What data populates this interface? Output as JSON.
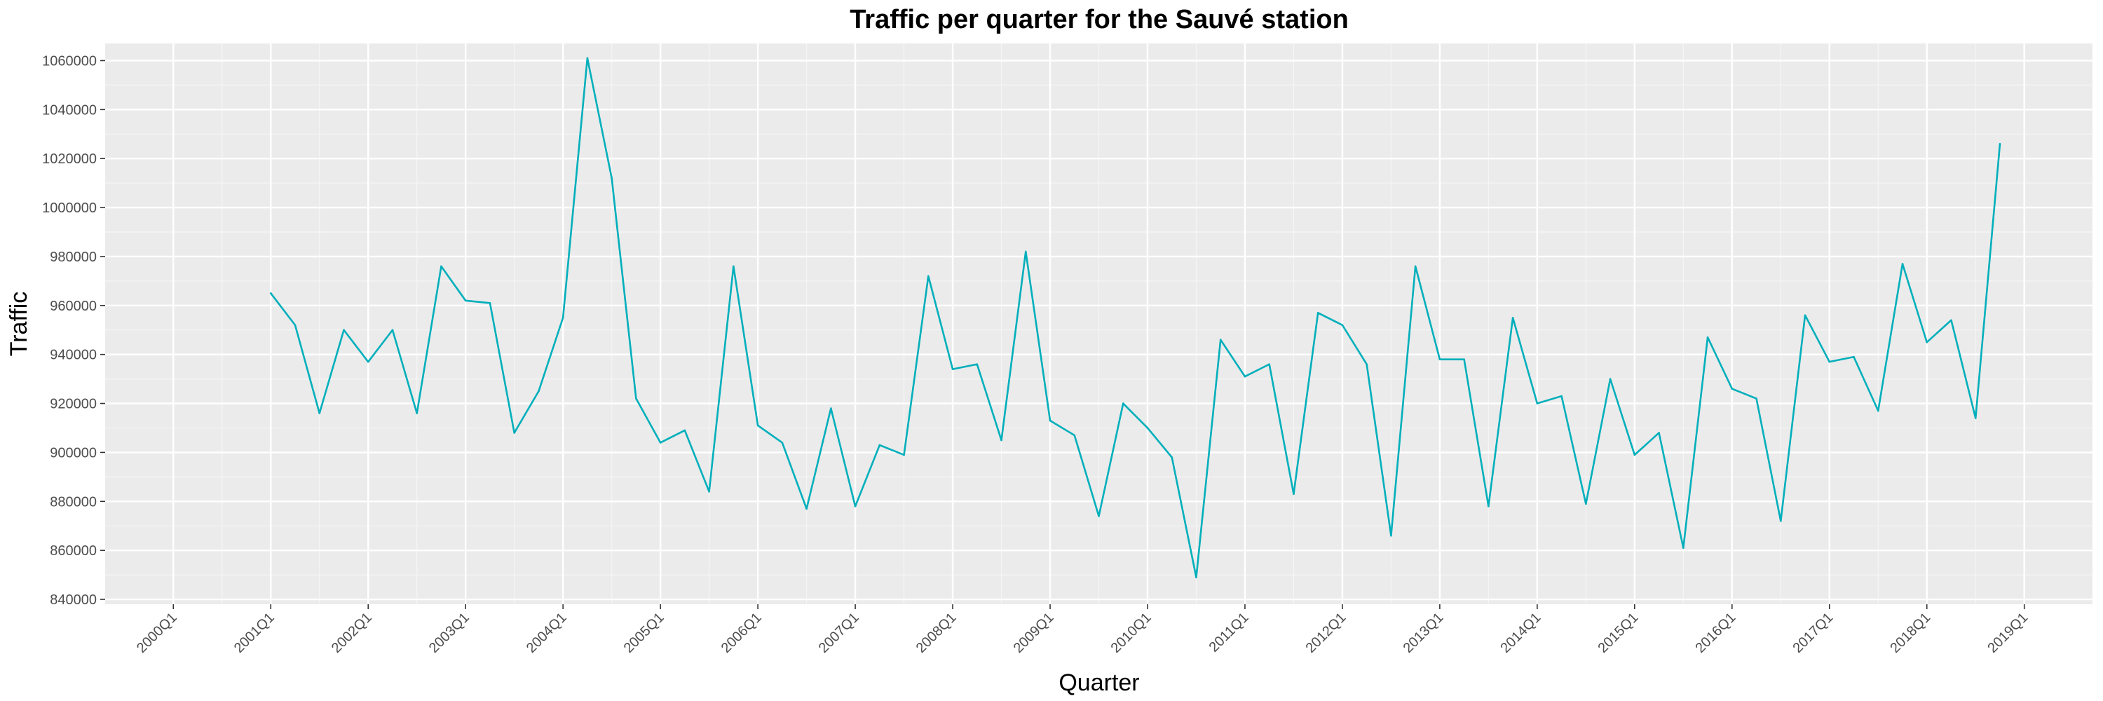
{
  "chart_data": {
    "type": "line",
    "title": "Traffic per quarter for the Sauvé station",
    "xlabel": "Quarter",
    "ylabel": "Traffic",
    "x_tick_labels": [
      "2000Q1",
      "2001Q1",
      "2002Q1",
      "2003Q1",
      "2004Q1",
      "2005Q1",
      "2006Q1",
      "2007Q1",
      "2008Q1",
      "2009Q1",
      "2010Q1",
      "2011Q1",
      "2012Q1",
      "2013Q1",
      "2014Q1",
      "2015Q1",
      "2016Q1",
      "2017Q1",
      "2018Q1",
      "2019Q1"
    ],
    "y_tick_labels": [
      "840000",
      "860000",
      "880000",
      "900000",
      "920000",
      "940000",
      "960000",
      "980000",
      "1000000",
      "1020000",
      "1040000",
      "1060000"
    ],
    "ylim": [
      838000,
      1067000
    ],
    "xlim": [
      "2000Q1",
      "2019Q1"
    ],
    "grid": true,
    "series": [
      {
        "color": "#00AFBB",
        "x": [
          "2001Q1",
          "2001Q2",
          "2001Q3",
          "2001Q4",
          "2002Q1",
          "2002Q2",
          "2002Q3",
          "2002Q4",
          "2003Q1",
          "2003Q2",
          "2003Q3",
          "2003Q4",
          "2004Q1",
          "2004Q2",
          "2004Q3",
          "2004Q4",
          "2005Q1",
          "2005Q2",
          "2005Q3",
          "2005Q4",
          "2006Q1",
          "2006Q2",
          "2006Q3",
          "2006Q4",
          "2007Q1",
          "2007Q2",
          "2007Q3",
          "2007Q4",
          "2008Q1",
          "2008Q2",
          "2008Q3",
          "2008Q4",
          "2009Q1",
          "2009Q2",
          "2009Q3",
          "2009Q4",
          "2010Q1",
          "2010Q2",
          "2010Q3",
          "2010Q4",
          "2011Q1",
          "2011Q2",
          "2011Q3",
          "2011Q4",
          "2012Q1",
          "2012Q2",
          "2012Q3",
          "2012Q4",
          "2013Q1",
          "2013Q2",
          "2013Q3",
          "2013Q4",
          "2014Q1",
          "2014Q2",
          "2014Q3",
          "2014Q4",
          "2015Q1",
          "2015Q2",
          "2015Q3",
          "2015Q4",
          "2016Q1",
          "2016Q2",
          "2016Q3",
          "2016Q4",
          "2017Q1",
          "2017Q2",
          "2017Q3",
          "2017Q4",
          "2018Q1",
          "2018Q2",
          "2018Q3",
          "2018Q4"
        ],
        "values": [
          965000,
          952000,
          916000,
          950000,
          937000,
          950000,
          916000,
          976000,
          962000,
          961000,
          908000,
          925000,
          955000,
          1061000,
          1012000,
          922000,
          904000,
          909000,
          884000,
          976000,
          911000,
          904000,
          877000,
          918000,
          878000,
          903000,
          899000,
          972000,
          934000,
          936000,
          905000,
          982000,
          913000,
          907000,
          874000,
          920000,
          910000,
          898000,
          849000,
          946000,
          931000,
          936000,
          883000,
          957000,
          952000,
          936000,
          866000,
          976000,
          938000,
          938000,
          878000,
          955000,
          920000,
          923000,
          879000,
          930000,
          899000,
          908000,
          861000,
          947000,
          926000,
          922000,
          872000,
          956000,
          937000,
          939000,
          917000,
          977000,
          945000,
          954000,
          914000,
          1026000
        ]
      }
    ]
  }
}
